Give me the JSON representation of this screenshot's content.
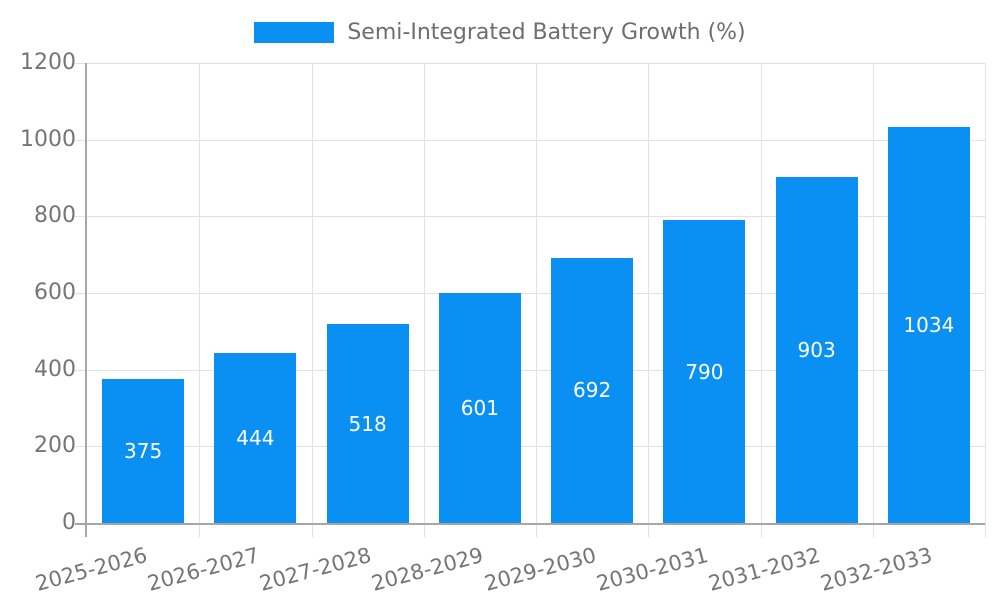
{
  "chart_data": {
    "type": "bar",
    "title": "Semi-Integrated Battery Growth (%)",
    "categories": [
      "2025-2026",
      "2026-2027",
      "2027-2028",
      "2028-2029",
      "2029-2030",
      "2030-2031",
      "2031-2032",
      "2032-2033"
    ],
    "values": [
      375,
      444,
      518,
      601,
      692,
      790,
      903,
      1034
    ],
    "xlabel": "",
    "ylabel": "",
    "ylim": [
      0,
      1200
    ],
    "y_ticks": [
      0,
      200,
      400,
      600,
      800,
      1000,
      1200
    ],
    "grid": true,
    "legend_position": "top-center",
    "bar_label_position": "inside-center",
    "colors": {
      "bar": "#0a90f3",
      "bar_label": "#ffffff",
      "axis_line": "#a6a6a6",
      "grid_line": "#e2e2e2",
      "tick_label": "#757575",
      "legend_text": "#6e6e6e",
      "background": "#ffffff"
    }
  }
}
